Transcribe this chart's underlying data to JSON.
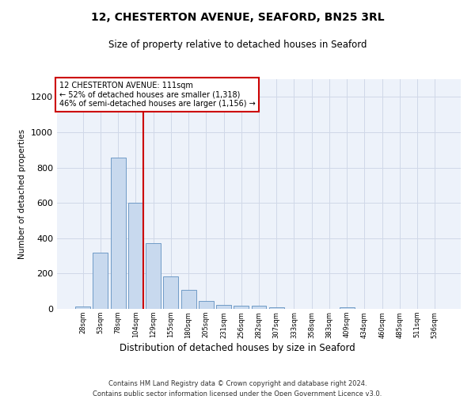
{
  "title": "12, CHESTERTON AVENUE, SEAFORD, BN25 3RL",
  "subtitle": "Size of property relative to detached houses in Seaford",
  "xlabel": "Distribution of detached houses by size in Seaford",
  "ylabel": "Number of detached properties",
  "bar_color": "#c8d9ee",
  "bar_edge_color": "#6090c0",
  "background_color": "#ffffff",
  "plot_bg_color": "#edf2fa",
  "grid_color": "#d0d8e8",
  "annotation_box_color": "#cc0000",
  "vline_color": "#cc0000",
  "annotation_line1": "12 CHESTERTON AVENUE: 111sqm",
  "annotation_line2": "← 52% of detached houses are smaller (1,318)",
  "annotation_line3": "46% of semi-detached houses are larger (1,156) →",
  "bin_labels": [
    "28sqm",
    "53sqm",
    "78sqm",
    "104sqm",
    "129sqm",
    "155sqm",
    "180sqm",
    "205sqm",
    "231sqm",
    "256sqm",
    "282sqm",
    "307sqm",
    "333sqm",
    "358sqm",
    "383sqm",
    "409sqm",
    "434sqm",
    "460sqm",
    "485sqm",
    "511sqm",
    "536sqm"
  ],
  "bar_heights": [
    15,
    318,
    855,
    600,
    370,
    185,
    108,
    46,
    22,
    18,
    18,
    10,
    0,
    0,
    0,
    10,
    0,
    0,
    0,
    0,
    0
  ],
  "ylim": [
    0,
    1300
  ],
  "yticks": [
    0,
    200,
    400,
    600,
    800,
    1000,
    1200
  ],
  "figsize": [
    6.0,
    5.0
  ],
  "dpi": 100,
  "footer_line1": "Contains HM Land Registry data © Crown copyright and database right 2024.",
  "footer_line2": "Contains public sector information licensed under the Open Government Licence v3.0."
}
